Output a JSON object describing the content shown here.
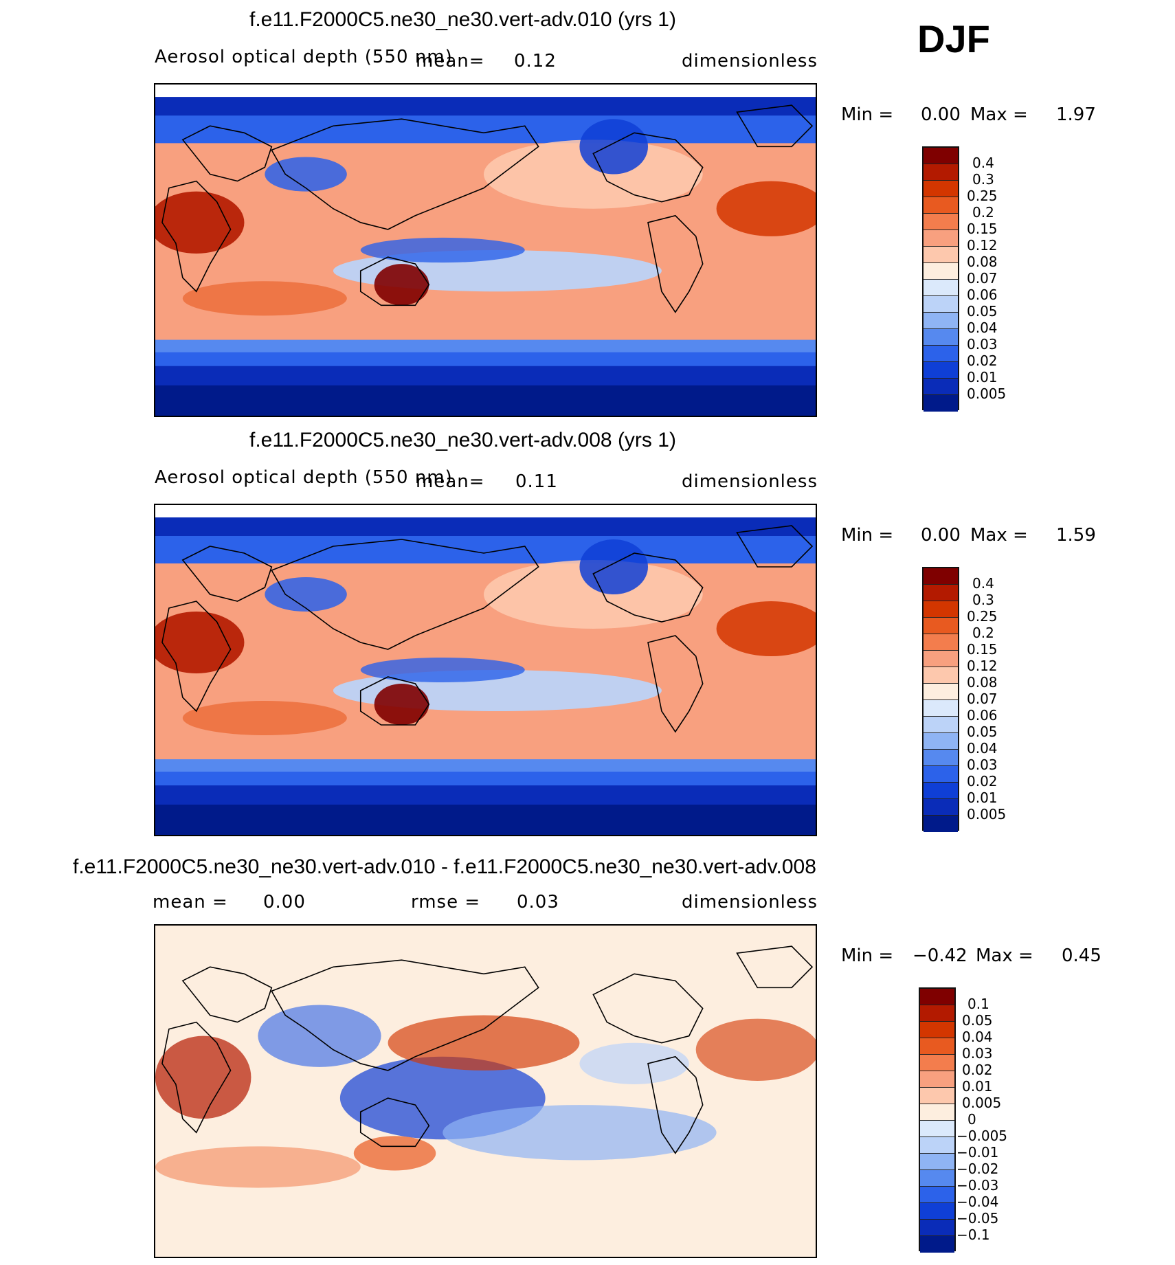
{
  "season": "DJF",
  "panels": [
    {
      "title": "f.e11.F2000C5.ne30_ne30.vert-adv.010 (yrs 1)",
      "variable": "Aerosol optical depth (550 nm)",
      "mean_label": "mean=",
      "mean_value": "0.12",
      "units": "dimensionless",
      "min_label": "Min =",
      "min_value": "0.00",
      "max_label": "Max =",
      "max_value": "1.97",
      "colorbar_levels": [
        "0.4",
        "0.3",
        "0.25",
        "0.2",
        "0.15",
        "0.12",
        "0.08",
        "0.07",
        "0.06",
        "0.05",
        "0.04",
        "0.03",
        "0.02",
        "0.01",
        "0.005"
      ],
      "colorbar_colors": [
        "#7f0000",
        "#b31a00",
        "#d33600",
        "#e85a20",
        "#f37d4d",
        "#f8a07f",
        "#fdc8ad",
        "#fdeedf",
        "#dbe9fb",
        "#bcd3f8",
        "#8fb4f4",
        "#5689ef",
        "#2c62ea",
        "#0f3fd6",
        "#0a2cb8",
        "#001a8a"
      ]
    },
    {
      "title": "f.e11.F2000C5.ne30_ne30.vert-adv.008 (yrs 1)",
      "variable": "Aerosol optical depth (550 nm)",
      "mean_label": "mean=",
      "mean_value": "0.11",
      "units": "dimensionless",
      "min_label": "Min =",
      "min_value": "0.00",
      "max_label": "Max =",
      "max_value": "1.59",
      "colorbar_levels": [
        "0.4",
        "0.3",
        "0.25",
        "0.2",
        "0.15",
        "0.12",
        "0.08",
        "0.07",
        "0.06",
        "0.05",
        "0.04",
        "0.03",
        "0.02",
        "0.01",
        "0.005"
      ],
      "colorbar_colors": [
        "#7f0000",
        "#b31a00",
        "#d33600",
        "#e85a20",
        "#f37d4d",
        "#f8a07f",
        "#fdc8ad",
        "#fdeedf",
        "#dbe9fb",
        "#bcd3f8",
        "#8fb4f4",
        "#5689ef",
        "#2c62ea",
        "#0f3fd6",
        "#0a2cb8",
        "#001a8a"
      ]
    },
    {
      "title": "f.e11.F2000C5.ne30_ne30.vert-adv.010 - f.e11.F2000C5.ne30_ne30.vert-adv.008",
      "mean_label": "mean =",
      "mean_value": "0.00",
      "rmse_label": "rmse =",
      "rmse_value": "0.03",
      "units": "dimensionless",
      "min_label": "Min =",
      "min_value": "−0.42",
      "max_label": "Max =",
      "max_value": "0.45",
      "colorbar_levels": [
        "0.1",
        "0.05",
        "0.04",
        "0.03",
        "0.02",
        "0.01",
        "0.005",
        "0",
        "−0.005",
        "−0.01",
        "−0.02",
        "−0.03",
        "−0.04",
        "−0.05",
        "−0.1"
      ],
      "colorbar_colors": [
        "#7f0000",
        "#b31a00",
        "#d33600",
        "#e85a20",
        "#f37d4d",
        "#f8a07f",
        "#fdc8ad",
        "#fdeedf",
        "#dbe9fb",
        "#bcd3f8",
        "#8fb4f4",
        "#5689ef",
        "#2c62ea",
        "#0f3fd6",
        "#0a2cb8",
        "#001a8a"
      ]
    }
  ]
}
